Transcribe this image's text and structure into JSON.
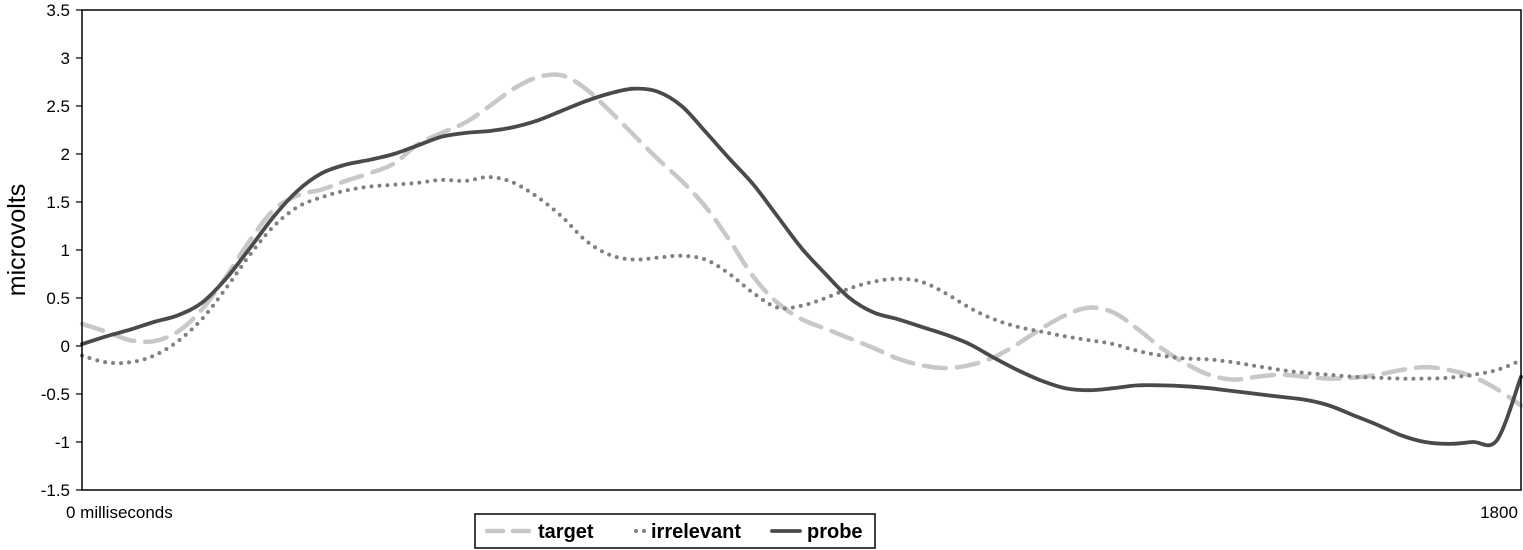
{
  "chart_data": {
    "type": "line",
    "title": "",
    "xlabel": "",
    "ylabel": "microvolts",
    "x_tick_labels": [
      "0 milliseconds",
      "1800"
    ],
    "xlim": [
      0,
      1800
    ],
    "ylim": [
      -1.5,
      3.5
    ],
    "y_ticks": [
      "3.5",
      "3",
      "2.5",
      "2",
      "1.5",
      "1",
      "0.5",
      "0",
      "-0.5",
      "-1",
      "-1.5"
    ],
    "grid": false,
    "legend_position": "bottom-center",
    "series": [
      {
        "name": "target",
        "style": "dashed",
        "color": "#c8c8c8",
        "points": [
          [
            0,
            0.23
          ],
          [
            30,
            0.15
          ],
          [
            60,
            0.06
          ],
          [
            90,
            0.05
          ],
          [
            120,
            0.15
          ],
          [
            150,
            0.38
          ],
          [
            180,
            0.72
          ],
          [
            210,
            1.1
          ],
          [
            240,
            1.42
          ],
          [
            270,
            1.57
          ],
          [
            300,
            1.63
          ],
          [
            330,
            1.72
          ],
          [
            360,
            1.8
          ],
          [
            390,
            1.9
          ],
          [
            420,
            2.1
          ],
          [
            450,
            2.22
          ],
          [
            480,
            2.33
          ],
          [
            510,
            2.5
          ],
          [
            540,
            2.68
          ],
          [
            570,
            2.8
          ],
          [
            600,
            2.82
          ],
          [
            630,
            2.68
          ],
          [
            660,
            2.45
          ],
          [
            690,
            2.2
          ],
          [
            720,
            1.95
          ],
          [
            750,
            1.72
          ],
          [
            780,
            1.45
          ],
          [
            810,
            1.1
          ],
          [
            840,
            0.72
          ],
          [
            870,
            0.45
          ],
          [
            900,
            0.28
          ],
          [
            930,
            0.18
          ],
          [
            960,
            0.08
          ],
          [
            990,
            -0.02
          ],
          [
            1020,
            -0.13
          ],
          [
            1050,
            -0.2
          ],
          [
            1080,
            -0.23
          ],
          [
            1110,
            -0.2
          ],
          [
            1140,
            -0.12
          ],
          [
            1170,
            0.02
          ],
          [
            1200,
            0.18
          ],
          [
            1230,
            0.32
          ],
          [
            1260,
            0.4
          ],
          [
            1290,
            0.35
          ],
          [
            1320,
            0.18
          ],
          [
            1350,
            -0.02
          ],
          [
            1380,
            -0.18
          ],
          [
            1410,
            -0.3
          ],
          [
            1440,
            -0.35
          ],
          [
            1470,
            -0.32
          ],
          [
            1500,
            -0.3
          ],
          [
            1530,
            -0.32
          ],
          [
            1560,
            -0.34
          ],
          [
            1590,
            -0.33
          ],
          [
            1620,
            -0.3
          ],
          [
            1650,
            -0.25
          ],
          [
            1680,
            -0.22
          ],
          [
            1710,
            -0.25
          ],
          [
            1740,
            -0.32
          ],
          [
            1770,
            -0.45
          ],
          [
            1800,
            -0.62
          ]
        ]
      },
      {
        "name": "irrelevant",
        "style": "dotted",
        "color": "#808080",
        "points": [
          [
            0,
            -0.1
          ],
          [
            30,
            -0.17
          ],
          [
            60,
            -0.17
          ],
          [
            90,
            -0.1
          ],
          [
            120,
            0.05
          ],
          [
            150,
            0.28
          ],
          [
            180,
            0.6
          ],
          [
            210,
            0.95
          ],
          [
            240,
            1.25
          ],
          [
            270,
            1.45
          ],
          [
            300,
            1.55
          ],
          [
            330,
            1.62
          ],
          [
            360,
            1.66
          ],
          [
            390,
            1.68
          ],
          [
            420,
            1.7
          ],
          [
            450,
            1.73
          ],
          [
            480,
            1.72
          ],
          [
            510,
            1.76
          ],
          [
            540,
            1.7
          ],
          [
            570,
            1.55
          ],
          [
            600,
            1.35
          ],
          [
            630,
            1.1
          ],
          [
            660,
            0.95
          ],
          [
            690,
            0.9
          ],
          [
            720,
            0.92
          ],
          [
            750,
            0.94
          ],
          [
            780,
            0.9
          ],
          [
            810,
            0.75
          ],
          [
            840,
            0.55
          ],
          [
            870,
            0.4
          ],
          [
            900,
            0.42
          ],
          [
            930,
            0.5
          ],
          [
            960,
            0.6
          ],
          [
            990,
            0.67
          ],
          [
            1020,
            0.7
          ],
          [
            1050,
            0.67
          ],
          [
            1080,
            0.55
          ],
          [
            1110,
            0.4
          ],
          [
            1140,
            0.28
          ],
          [
            1170,
            0.2
          ],
          [
            1200,
            0.15
          ],
          [
            1230,
            0.1
          ],
          [
            1260,
            0.06
          ],
          [
            1290,
            0.02
          ],
          [
            1320,
            -0.05
          ],
          [
            1350,
            -0.1
          ],
          [
            1380,
            -0.13
          ],
          [
            1410,
            -0.14
          ],
          [
            1440,
            -0.17
          ],
          [
            1470,
            -0.21
          ],
          [
            1500,
            -0.25
          ],
          [
            1530,
            -0.28
          ],
          [
            1560,
            -0.3
          ],
          [
            1590,
            -0.32
          ],
          [
            1620,
            -0.33
          ],
          [
            1650,
            -0.34
          ],
          [
            1680,
            -0.34
          ],
          [
            1710,
            -0.33
          ],
          [
            1740,
            -0.3
          ],
          [
            1770,
            -0.25
          ],
          [
            1800,
            -0.15
          ]
        ]
      },
      {
        "name": "probe",
        "style": "solid",
        "color": "#4a4a4a",
        "points": [
          [
            0,
            0.02
          ],
          [
            30,
            0.1
          ],
          [
            60,
            0.17
          ],
          [
            90,
            0.25
          ],
          [
            120,
            0.32
          ],
          [
            150,
            0.45
          ],
          [
            180,
            0.7
          ],
          [
            210,
            1.02
          ],
          [
            240,
            1.35
          ],
          [
            270,
            1.62
          ],
          [
            300,
            1.8
          ],
          [
            330,
            1.89
          ],
          [
            360,
            1.94
          ],
          [
            390,
            2.0
          ],
          [
            420,
            2.09
          ],
          [
            450,
            2.18
          ],
          [
            480,
            2.22
          ],
          [
            510,
            2.24
          ],
          [
            540,
            2.28
          ],
          [
            570,
            2.35
          ],
          [
            600,
            2.45
          ],
          [
            630,
            2.55
          ],
          [
            660,
            2.63
          ],
          [
            690,
            2.68
          ],
          [
            720,
            2.65
          ],
          [
            750,
            2.5
          ],
          [
            780,
            2.23
          ],
          [
            810,
            1.95
          ],
          [
            840,
            1.68
          ],
          [
            870,
            1.35
          ],
          [
            900,
            1.02
          ],
          [
            930,
            0.75
          ],
          [
            960,
            0.5
          ],
          [
            990,
            0.35
          ],
          [
            1020,
            0.28
          ],
          [
            1050,
            0.2
          ],
          [
            1080,
            0.12
          ],
          [
            1110,
            0.02
          ],
          [
            1140,
            -0.12
          ],
          [
            1170,
            -0.25
          ],
          [
            1200,
            -0.36
          ],
          [
            1230,
            -0.44
          ],
          [
            1260,
            -0.46
          ],
          [
            1290,
            -0.44
          ],
          [
            1320,
            -0.41
          ],
          [
            1350,
            -0.41
          ],
          [
            1380,
            -0.42
          ],
          [
            1410,
            -0.44
          ],
          [
            1440,
            -0.47
          ],
          [
            1470,
            -0.5
          ],
          [
            1500,
            -0.53
          ],
          [
            1530,
            -0.56
          ],
          [
            1560,
            -0.62
          ],
          [
            1590,
            -0.72
          ],
          [
            1620,
            -0.82
          ],
          [
            1650,
            -0.93
          ],
          [
            1680,
            -1.0
          ],
          [
            1710,
            -1.02
          ],
          [
            1740,
            -1.0
          ],
          [
            1770,
            -0.98
          ],
          [
            1800,
            -0.32
          ]
        ]
      }
    ]
  }
}
